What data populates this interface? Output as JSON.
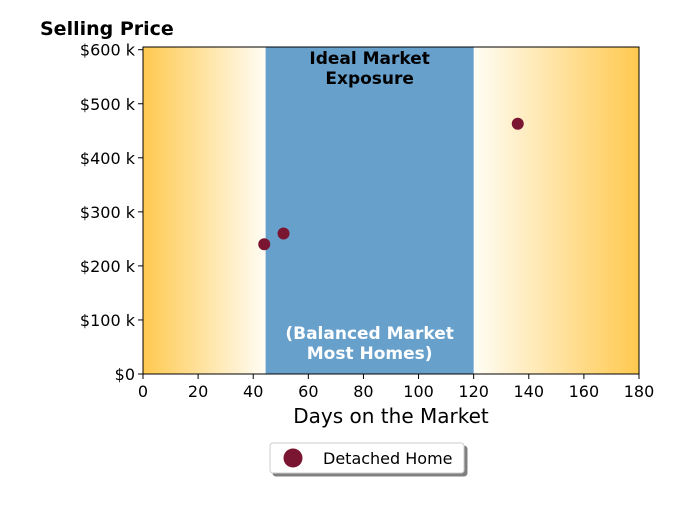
{
  "chart_data": {
    "type": "scatter",
    "ylabel": "Selling Price",
    "xlabel": "Days on the Market",
    "xlim": [
      0,
      180
    ],
    "ylim": [
      0,
      605000
    ],
    "x_ticks": [
      0,
      20,
      40,
      60,
      80,
      100,
      120,
      140,
      160,
      180
    ],
    "x_tick_labels": [
      "0",
      "20",
      "40",
      "60",
      "80",
      "100",
      "120",
      "140",
      "160",
      "180"
    ],
    "y_ticks": [
      0,
      100000,
      200000,
      300000,
      400000,
      500000,
      600000
    ],
    "y_tick_labels": [
      "$0",
      "$100 k",
      "$200 k",
      "$300 k",
      "$400 k",
      "$500 k",
      "$600 k"
    ],
    "series": [
      {
        "name": "Detached Home",
        "color": "#7a1631",
        "points": [
          {
            "x": 44,
            "y": 240000
          },
          {
            "x": 51,
            "y": 260000
          },
          {
            "x": 136,
            "y": 463000
          }
        ]
      }
    ],
    "band": {
      "x_start": 44.5,
      "x_end": 120,
      "color": "#68a0cc",
      "top_label_lines": [
        "Ideal Market",
        "Exposure"
      ],
      "top_label_color": "#000000",
      "bottom_label_lines": [
        "(Balanced Market",
        "Most Homes)"
      ],
      "bottom_label_color": "#ffffff"
    },
    "background_gradient": {
      "edge_color": "#ffc94f",
      "inner_color": "#fffdf5"
    },
    "grid": false,
    "legend_position": "bottom-center"
  }
}
